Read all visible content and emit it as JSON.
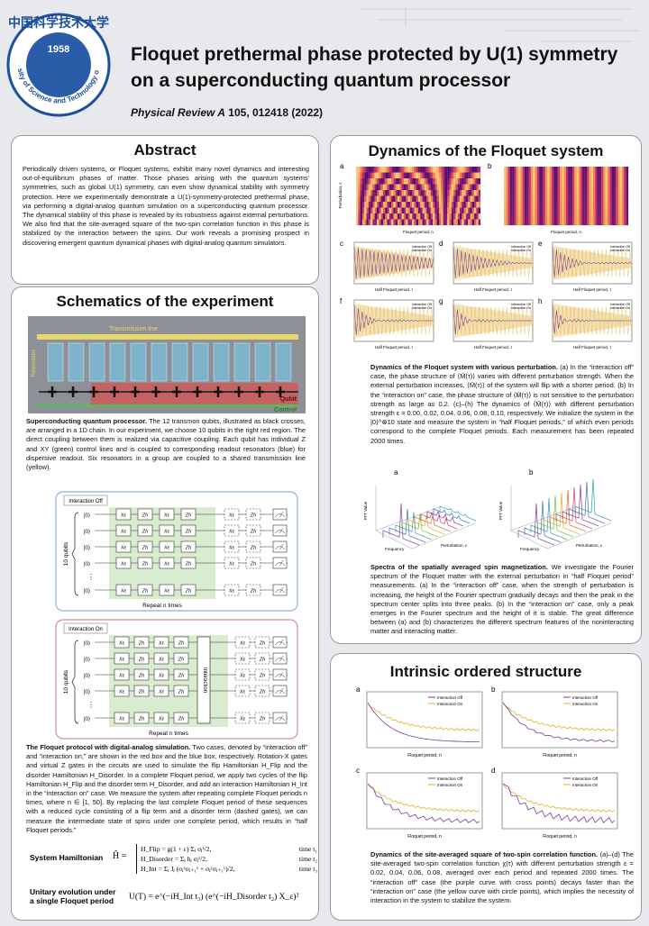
{
  "header": {
    "logo_cn": "中国科学技术大学",
    "university": "University of Science and Technology of China",
    "year": "1958",
    "title": "Floquet prethermal phase protected by U(1) symmetry on a superconducting quantum processor",
    "journal": "Physical Review A",
    "citation": "105, 012418 (2022)"
  },
  "abstract": {
    "heading": "Abstract",
    "text": "Periodically driven systems, or Floquet systems, exhibit many novel dynamics and interesting out-of-equilibrium phases of matter. Those phases arising with the quantum systems' symmetries, such as global U(1) symmetry, can even show dynamical stability with symmetry protection. Here we experimentally demonstrate a U(1)-symmetry-protected prethermal phase, via performing a digital-analog quantum simulation on a superconducting quantum processor. The dynamical stability of this phase is revealed by its robustness against external perturbations. We also find that the site-averaged square of the two-spin correlation function in this phase is stabilized by the interaction between the spins. Our work reveals a promising prospect in discovering emergent quantum dynamical phases with digital-analog quantum simulators."
  },
  "schematics": {
    "heading": "Schematics of the experiment",
    "device": {
      "transmission": "Transmission line",
      "resonators": "Resonators",
      "qubit": "Qubit",
      "control": "Control"
    },
    "device_caption": {
      "bold": "Superconducting quantum processor.",
      "text": " The 12 transmon qubits, illustrated as black crosses, are arranged in a 1D chain. In our experiment, we choose 10 qubits in the right red region. The direct coupling between them is realized via capacitive coupling. Each qubit has individual Z and XY (green) control lines and is coupled to corresponding readout resonators (blue) for dispersive readout. Six resonators in a group are coupled to a shared transmission line (yellow)."
    },
    "circuit": {
      "off": "Interaction Off",
      "on": "Interaction On",
      "qubits": "10 qubits",
      "repeat": "Repeat n times",
      "interaction": "Interaction",
      "ket": "|0⟩",
      "gate_x": "Xε",
      "gate_z": "Zh",
      "dots": "⋮"
    },
    "protocol": {
      "bold": "The Floquet protocol with digital-analog simulation.",
      "text": " Two cases, denoted by “interaction off” and “interaction on,” are shown in the red box and the blue box, respectively. Rotation-X gates and virtual Z gates in the circuits are used to simulate the flip Hamiltonian H_Flip and the disorder Hamiltonian H_Disorder. In a complete Floquet period, we apply two cycles of the flip Hamiltonian H_Flip and the disorder term H_Disorder, and add an interaction Hamiltonian H_Int in the “interaction on” case. We measure the system after repeating complete Floquet periods n times, where n ∈ [1, 50]. By replacing the last complete Floquet period of these sequences with a reduced cycle consisting of a flip term and a disorder term (dashed gates), we can measure the intermediate state of spins under one complete period, which results in “half Floquet periods.”"
    },
    "hamiltonian": {
      "label": "System Hamiltonian",
      "symbol": "Ĥ =",
      "terms": [
        {
          "formula": "H_Flip = g(1 + ε) Σⱼ σⱼˣ/2,",
          "time": "time t₁"
        },
        {
          "formula": "H_Disorder = Σⱼ hⱼ σⱼᶻ/2,",
          "time": "time t₂"
        },
        {
          "formula": "H_Int = Σⱼ Jⱼ (σⱼˣσⱼ₊₁ˣ + σⱼʸσⱼ₊₁ʸ)/2,",
          "time": "time t₃"
        }
      ]
    },
    "unitary": {
      "label": "Unitary evolution under a single Floquet period",
      "formula": "U(T) = e^(−iH_Int t₃) (e^(−iH_Disorder t₂) X_ε)²"
    }
  },
  "dynamics": {
    "heading": "Dynamics of the Floquet system",
    "panels": [
      "a",
      "b",
      "c",
      "d",
      "e",
      "f",
      "g",
      "h"
    ],
    "labels": {
      "off": "Interaction Off",
      "on": "Interaction On",
      "floquet": "Floquet period, n",
      "half": "Half Floquet period, τ",
      "perturbation": "Perturbation, ε",
      "fft": "FFT Value",
      "frequency": "Frequency"
    },
    "caption": {
      "bold": "Dynamics of the Floquet system with various perturbation.",
      "text": " (a) In the “interaction off” case, the phase structure of ⟨M̄(τ)⟩ varies with different perturbation strength. When the external perturbation increases, ⟨M̄(τ)⟩ of the system will flip with a shorter period. (b) In the “interaction on” case, the phase structure of ⟨M̄(τ)⟩ is not sensitive to the perturbation strength as large as 0.2. (c)–(h) The dynamics of ⟨M̄(τ)⟩ with different perturbation strength ε = 0.00, 0.02, 0.04, 0.06, 0.08, 0.10, respectively. We initialize the system in the |0⟩^⊗10 state and measure the system in “half Floquet periods,” of which even periods correspond to the complete Floquet periods. Each measurement has been repeated 2000 times."
    },
    "fft_caption": {
      "bold": "Spectra of the spatially averaged spin magnetization.",
      "text": " We investigate the Fourier spectrum of the Floquet matter with the external perturbation in “half Floquet period” measurements. (a) In the “interaction off” case, when the strength of perturbation is increasing, the height of the Fourier spectrum gradually decays and then the peak in the spectrum center splits into three peaks. (b) In the “interaction on” case, only a peak emerges in the Fourier spectrum and the height of it is stable. The great difference between (a) and (b) characterizes the different spectrum features of the noninteracting matter and interacting matter."
    }
  },
  "intrinsic": {
    "heading": "Intrinsic ordered structure",
    "panels": [
      "a",
      "b",
      "c",
      "d"
    ],
    "labels": {
      "off": "Interaction Off",
      "on": "Interaction On",
      "floquet": "Floquet period, n"
    },
    "caption": {
      "bold": "Dynamics of the site-averaged square of two-spin correlation function.",
      "text": " (a)–(d) The site-averaged two-spin correlation function χ(τ) with different perturbation strength ε = 0.02, 0.04, 0.06, 0.08, averaged over each period and repeated 2000 times. The “interaction off” case (the purple curve with cross points) decays faster than the “interaction on” case (the yellow curve with circle points), which implies the necessity of interaction in the system to stabilize the system."
    }
  }
}
